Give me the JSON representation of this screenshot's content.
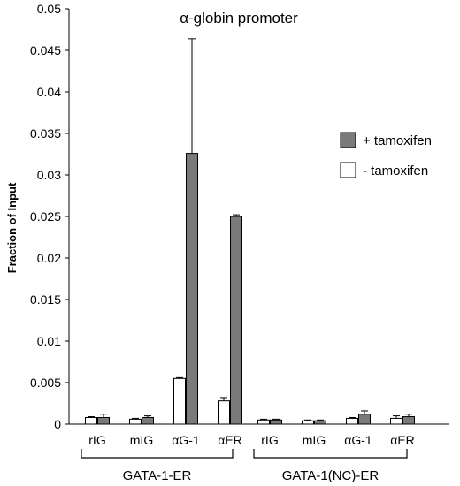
{
  "chart_data": {
    "type": "bar",
    "title": "α-globin promoter",
    "ylabel": "Fraction of Input",
    "xlabel": "",
    "ylim": [
      0,
      0.05
    ],
    "yticks": [
      "0",
      "0.005",
      "0.01",
      "0.015",
      "0.02",
      "0.025",
      "0.03",
      "0.035",
      "0.04",
      "0.045",
      "0.05"
    ],
    "ytick_values": [
      0,
      0.005,
      0.01,
      0.015,
      0.02,
      0.025,
      0.03,
      0.035,
      0.04,
      0.045,
      0.05
    ],
    "grid": false,
    "legend_position": "right",
    "categories": [
      "rIG",
      "mIG",
      "αG-1",
      "αER",
      "rIG",
      "mIG",
      "αG-1",
      "αER"
    ],
    "groups": [
      {
        "label": "GATA-1-ER",
        "categories": [
          "rIG",
          "mIG",
          "αG-1",
          "αER"
        ]
      },
      {
        "label": "GATA-1(NC)-ER",
        "categories": [
          "rIG",
          "mIG",
          "αG-1",
          "αER"
        ]
      }
    ],
    "series": [
      {
        "name": "- tamoxifen",
        "color": "#ffffff",
        "values": [
          0.0008,
          0.0006,
          0.0055,
          0.0028,
          0.0005,
          0.0004,
          0.0007,
          0.0007
        ],
        "errors": [
          0.0001,
          0.0001,
          0.0001,
          0.0004,
          0.0001,
          0.0001,
          0.0001,
          0.0003
        ]
      },
      {
        "name": "+ tamoxifen",
        "color": "#7a7a7a",
        "values": [
          0.0008,
          0.0008,
          0.0326,
          0.025,
          0.0005,
          0.0004,
          0.0012,
          0.0009
        ],
        "errors": [
          0.0004,
          0.0002,
          0.0138,
          0.0002,
          0.0001,
          0.0001,
          0.0004,
          0.0003
        ]
      }
    ],
    "legend": [
      {
        "label": "+ tamoxifen",
        "color": "#7a7a7a"
      },
      {
        "label": "- tamoxifen",
        "color": "#ffffff"
      }
    ]
  }
}
